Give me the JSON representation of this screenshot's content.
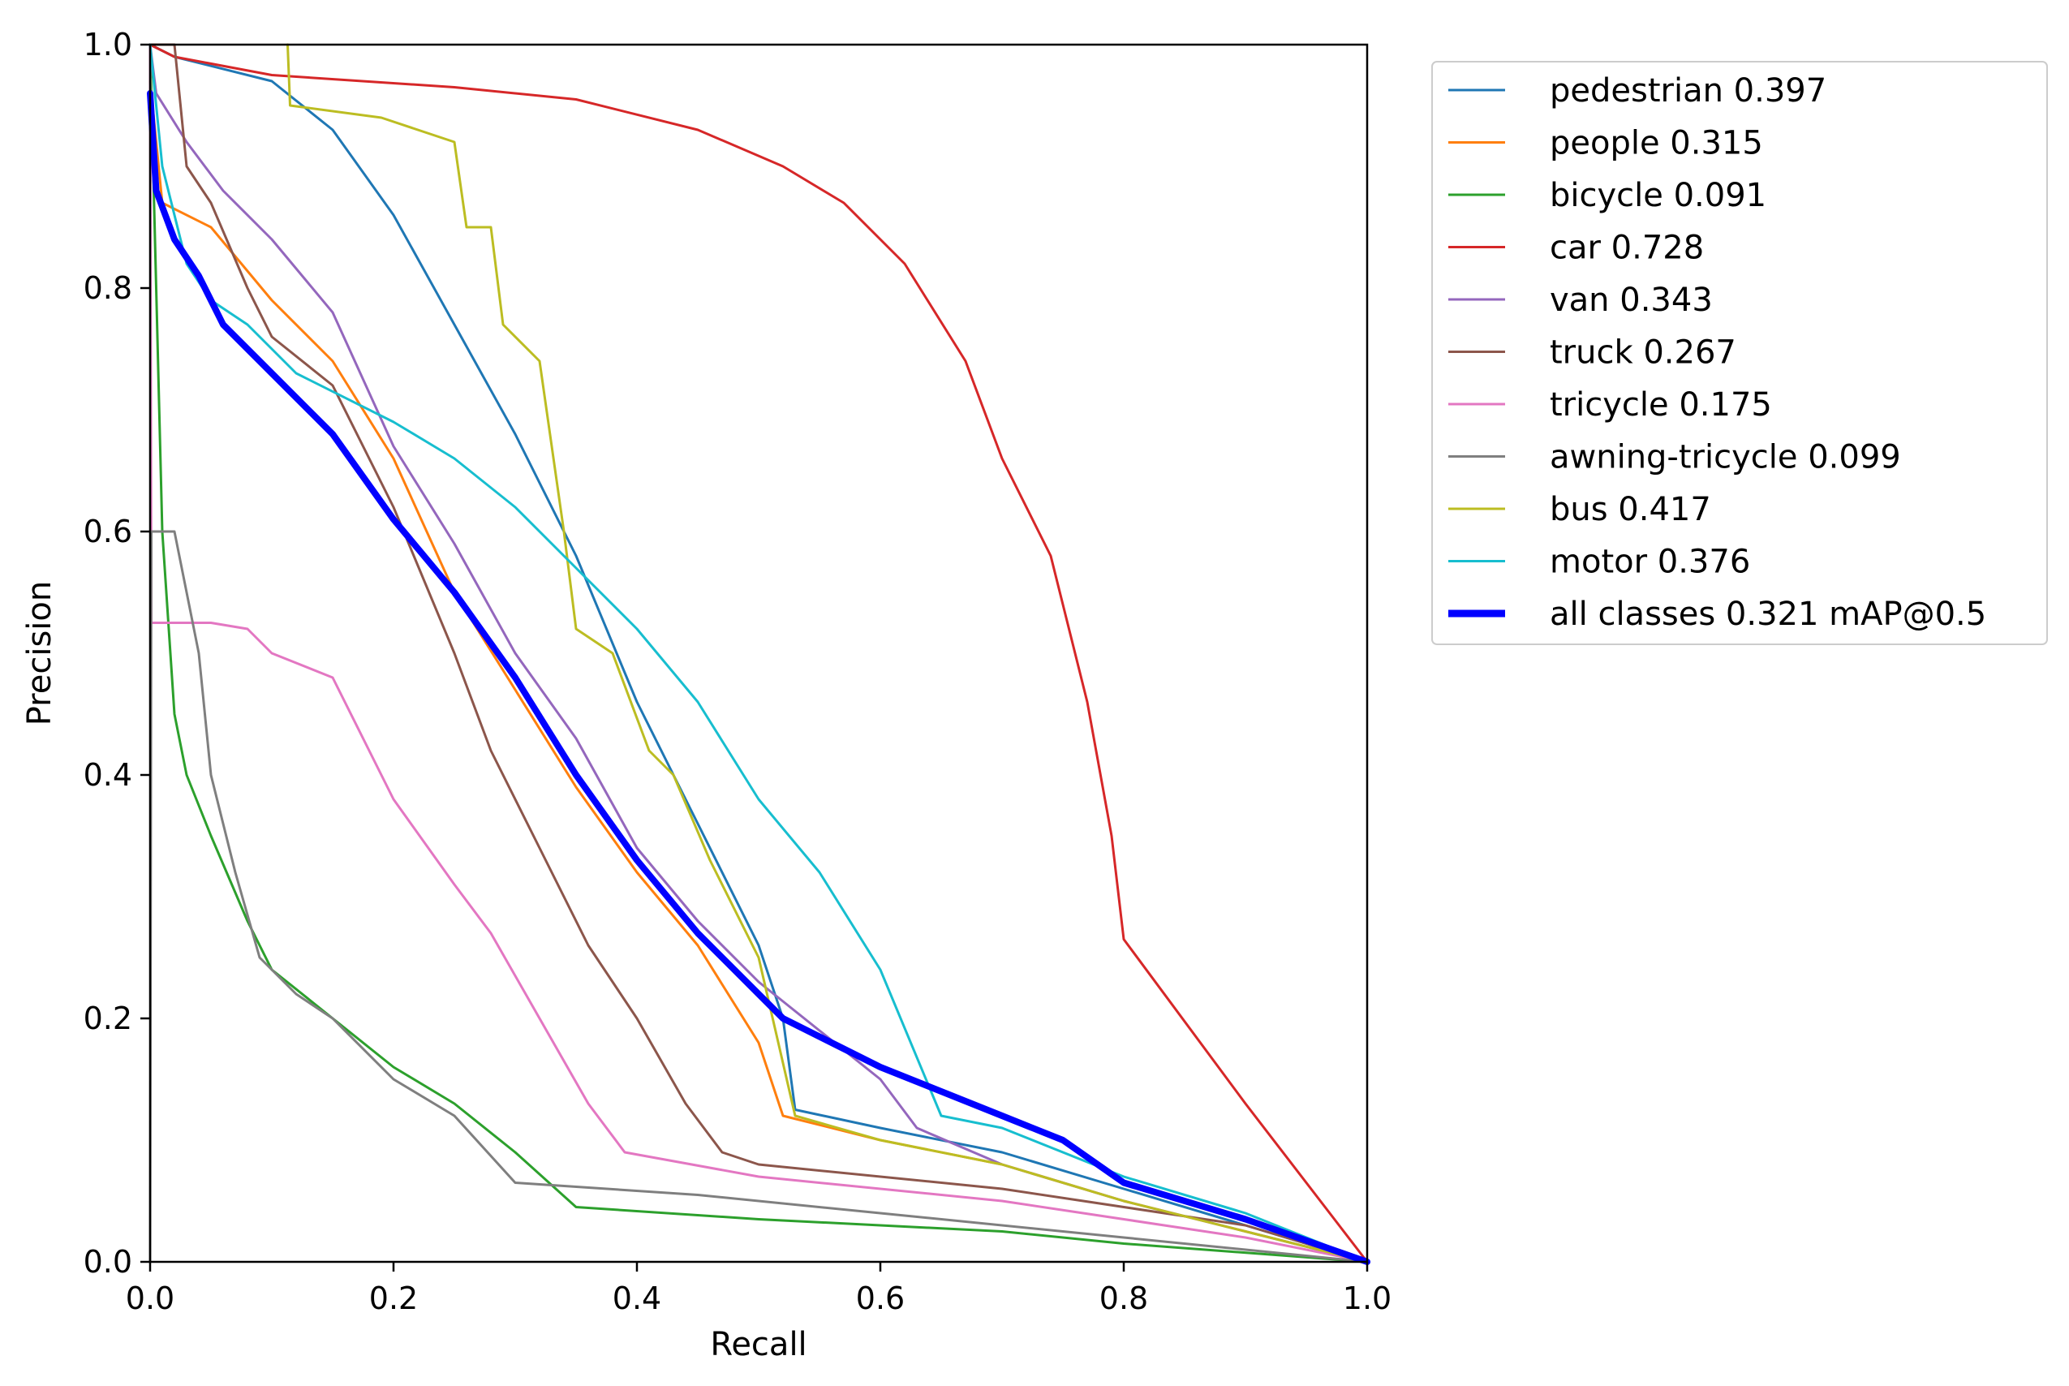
{
  "chart_data": {
    "type": "line",
    "title": "",
    "xlabel": "Recall",
    "ylabel": "Precision",
    "xlim": [
      0,
      1
    ],
    "ylim": [
      0,
      1
    ],
    "xticks": [
      "0.0",
      "0.2",
      "0.4",
      "0.6",
      "0.8",
      "1.0"
    ],
    "yticks": [
      "0.0",
      "0.2",
      "0.4",
      "0.6",
      "0.8",
      "1.0"
    ],
    "grid": false,
    "legend_position": "outside-right-top",
    "series": [
      {
        "name": "pedestrian 0.397",
        "color": "#1f77b4",
        "width": 2,
        "points": [
          [
            0,
            1.0
          ],
          [
            0.02,
            0.99
          ],
          [
            0.1,
            0.97
          ],
          [
            0.15,
            0.93
          ],
          [
            0.2,
            0.86
          ],
          [
            0.25,
            0.77
          ],
          [
            0.3,
            0.68
          ],
          [
            0.35,
            0.58
          ],
          [
            0.4,
            0.46
          ],
          [
            0.45,
            0.36
          ],
          [
            0.5,
            0.26
          ],
          [
            0.52,
            0.2
          ],
          [
            0.53,
            0.125
          ],
          [
            0.6,
            0.11
          ],
          [
            0.7,
            0.09
          ],
          [
            0.8,
            0.06
          ],
          [
            0.9,
            0.03
          ],
          [
            1.0,
            0.0
          ]
        ]
      },
      {
        "name": "people 0.315",
        "color": "#ff7f0e",
        "width": 2,
        "points": [
          [
            0,
            0.97
          ],
          [
            0.01,
            0.87
          ],
          [
            0.05,
            0.85
          ],
          [
            0.1,
            0.79
          ],
          [
            0.15,
            0.74
          ],
          [
            0.2,
            0.66
          ],
          [
            0.25,
            0.55
          ],
          [
            0.3,
            0.47
          ],
          [
            0.35,
            0.39
          ],
          [
            0.4,
            0.32
          ],
          [
            0.45,
            0.26
          ],
          [
            0.5,
            0.18
          ],
          [
            0.52,
            0.12
          ],
          [
            0.6,
            0.1
          ],
          [
            0.7,
            0.08
          ],
          [
            0.8,
            0.05
          ],
          [
            0.9,
            0.025
          ],
          [
            1.0,
            0.0
          ]
        ]
      },
      {
        "name": "bicycle 0.091",
        "color": "#2ca02c",
        "width": 2,
        "points": [
          [
            0,
            1.0
          ],
          [
            0.005,
            0.8
          ],
          [
            0.01,
            0.6
          ],
          [
            0.02,
            0.45
          ],
          [
            0.03,
            0.4
          ],
          [
            0.05,
            0.35
          ],
          [
            0.08,
            0.28
          ],
          [
            0.1,
            0.24
          ],
          [
            0.15,
            0.2
          ],
          [
            0.2,
            0.16
          ],
          [
            0.25,
            0.13
          ],
          [
            0.3,
            0.09
          ],
          [
            0.35,
            0.045
          ],
          [
            0.5,
            0.035
          ],
          [
            0.7,
            0.025
          ],
          [
            0.8,
            0.015
          ],
          [
            1.0,
            0.0
          ]
        ]
      },
      {
        "name": "car 0.728",
        "color": "#d62728",
        "width": 2,
        "points": [
          [
            0,
            1.0
          ],
          [
            0.02,
            0.99
          ],
          [
            0.1,
            0.975
          ],
          [
            0.25,
            0.965
          ],
          [
            0.35,
            0.955
          ],
          [
            0.45,
            0.93
          ],
          [
            0.52,
            0.9
          ],
          [
            0.57,
            0.87
          ],
          [
            0.62,
            0.82
          ],
          [
            0.67,
            0.74
          ],
          [
            0.7,
            0.66
          ],
          [
            0.74,
            0.58
          ],
          [
            0.77,
            0.46
          ],
          [
            0.79,
            0.35
          ],
          [
            0.8,
            0.265
          ],
          [
            0.9,
            0.13
          ],
          [
            1.0,
            0.0
          ]
        ]
      },
      {
        "name": "van 0.343",
        "color": "#9467bd",
        "width": 2,
        "points": [
          [
            0,
            1.0
          ],
          [
            0.005,
            0.96
          ],
          [
            0.03,
            0.92
          ],
          [
            0.06,
            0.88
          ],
          [
            0.1,
            0.84
          ],
          [
            0.15,
            0.78
          ],
          [
            0.2,
            0.67
          ],
          [
            0.25,
            0.59
          ],
          [
            0.3,
            0.5
          ],
          [
            0.35,
            0.43
          ],
          [
            0.4,
            0.34
          ],
          [
            0.45,
            0.28
          ],
          [
            0.5,
            0.23
          ],
          [
            0.55,
            0.19
          ],
          [
            0.6,
            0.15
          ],
          [
            0.63,
            0.11
          ],
          [
            0.7,
            0.08
          ],
          [
            0.8,
            0.05
          ],
          [
            1.0,
            0.0
          ]
        ]
      },
      {
        "name": "truck 0.267",
        "color": "#8c564b",
        "width": 2,
        "points": [
          [
            0,
            1.0
          ],
          [
            0.02,
            1.0
          ],
          [
            0.03,
            0.9
          ],
          [
            0.05,
            0.87
          ],
          [
            0.08,
            0.8
          ],
          [
            0.1,
            0.76
          ],
          [
            0.15,
            0.72
          ],
          [
            0.2,
            0.62
          ],
          [
            0.25,
            0.5
          ],
          [
            0.28,
            0.42
          ],
          [
            0.32,
            0.34
          ],
          [
            0.36,
            0.26
          ],
          [
            0.4,
            0.2
          ],
          [
            0.44,
            0.13
          ],
          [
            0.47,
            0.09
          ],
          [
            0.5,
            0.08
          ],
          [
            0.7,
            0.06
          ],
          [
            0.9,
            0.03
          ],
          [
            1.0,
            0.0
          ]
        ]
      },
      {
        "name": "tricycle 0.175",
        "color": "#e377c2",
        "width": 2,
        "points": [
          [
            0,
            1.0
          ],
          [
            0.001,
            0.525
          ],
          [
            0.05,
            0.525
          ],
          [
            0.08,
            0.52
          ],
          [
            0.1,
            0.5
          ],
          [
            0.15,
            0.48
          ],
          [
            0.18,
            0.42
          ],
          [
            0.2,
            0.38
          ],
          [
            0.25,
            0.31
          ],
          [
            0.28,
            0.27
          ],
          [
            0.32,
            0.2
          ],
          [
            0.36,
            0.13
          ],
          [
            0.39,
            0.09
          ],
          [
            0.5,
            0.07
          ],
          [
            0.7,
            0.05
          ],
          [
            0.9,
            0.02
          ],
          [
            1.0,
            0.0
          ]
        ]
      },
      {
        "name": "awning-tricycle 0.099",
        "color": "#7f7f7f",
        "width": 2,
        "points": [
          [
            0,
            0.0
          ],
          [
            0.001,
            0.6
          ],
          [
            0.02,
            0.6
          ],
          [
            0.04,
            0.5
          ],
          [
            0.05,
            0.4
          ],
          [
            0.07,
            0.32
          ],
          [
            0.09,
            0.25
          ],
          [
            0.12,
            0.22
          ],
          [
            0.15,
            0.2
          ],
          [
            0.2,
            0.15
          ],
          [
            0.25,
            0.12
          ],
          [
            0.3,
            0.065
          ],
          [
            0.45,
            0.055
          ],
          [
            0.6,
            0.04
          ],
          [
            0.8,
            0.02
          ],
          [
            1.0,
            0.0
          ]
        ]
      },
      {
        "name": "bus 0.417",
        "color": "#bcbd22",
        "width": 2,
        "points": [
          [
            0.113,
            1.0
          ],
          [
            0.115,
            0.95
          ],
          [
            0.19,
            0.94
          ],
          [
            0.25,
            0.92
          ],
          [
            0.26,
            0.85
          ],
          [
            0.28,
            0.85
          ],
          [
            0.29,
            0.77
          ],
          [
            0.32,
            0.74
          ],
          [
            0.34,
            0.6
          ],
          [
            0.35,
            0.52
          ],
          [
            0.38,
            0.5
          ],
          [
            0.41,
            0.42
          ],
          [
            0.43,
            0.4
          ],
          [
            0.46,
            0.33
          ],
          [
            0.5,
            0.25
          ],
          [
            0.53,
            0.12
          ],
          [
            0.6,
            0.1
          ],
          [
            0.7,
            0.08
          ],
          [
            0.8,
            0.05
          ],
          [
            1.0,
            0.0
          ]
        ]
      },
      {
        "name": "motor 0.376",
        "color": "#17becf",
        "width": 2,
        "points": [
          [
            0,
            1.0
          ],
          [
            0.01,
            0.9
          ],
          [
            0.03,
            0.82
          ],
          [
            0.05,
            0.79
          ],
          [
            0.08,
            0.77
          ],
          [
            0.12,
            0.73
          ],
          [
            0.2,
            0.69
          ],
          [
            0.25,
            0.66
          ],
          [
            0.3,
            0.62
          ],
          [
            0.35,
            0.57
          ],
          [
            0.4,
            0.52
          ],
          [
            0.45,
            0.46
          ],
          [
            0.5,
            0.38
          ],
          [
            0.55,
            0.32
          ],
          [
            0.6,
            0.24
          ],
          [
            0.65,
            0.12
          ],
          [
            0.7,
            0.11
          ],
          [
            0.8,
            0.07
          ],
          [
            0.9,
            0.04
          ],
          [
            1.0,
            0.0
          ]
        ]
      },
      {
        "name": "all classes 0.321 mAP@0.5",
        "color": "#0000ff",
        "width": 8,
        "points": [
          [
            0,
            0.96
          ],
          [
            0.005,
            0.88
          ],
          [
            0.02,
            0.84
          ],
          [
            0.04,
            0.81
          ],
          [
            0.06,
            0.77
          ],
          [
            0.1,
            0.73
          ],
          [
            0.15,
            0.68
          ],
          [
            0.2,
            0.61
          ],
          [
            0.25,
            0.55
          ],
          [
            0.3,
            0.48
          ],
          [
            0.35,
            0.4
          ],
          [
            0.4,
            0.33
          ],
          [
            0.45,
            0.27
          ],
          [
            0.5,
            0.22
          ],
          [
            0.52,
            0.2
          ],
          [
            0.6,
            0.16
          ],
          [
            0.7,
            0.12
          ],
          [
            0.75,
            0.1
          ],
          [
            0.8,
            0.065
          ],
          [
            0.9,
            0.035
          ],
          [
            1.0,
            0.0
          ]
        ]
      }
    ]
  }
}
